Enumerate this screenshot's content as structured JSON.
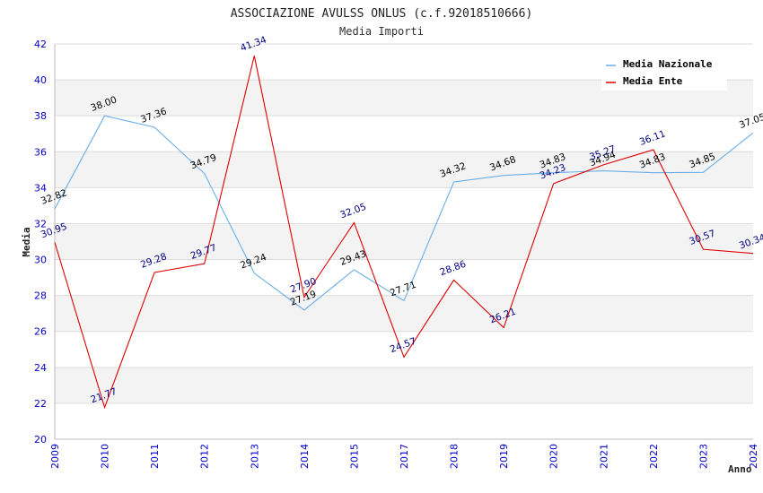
{
  "chart_data": {
    "type": "line",
    "title": "ASSOCIAZIONE AVULSS ONLUS (c.f.92018510666)",
    "subtitle": "Media Importi",
    "xlabel": "Anno",
    "ylabel": "Media",
    "ylim": [
      20,
      42
    ],
    "ytick_step": 2,
    "grid": true,
    "legend_position": "top-right",
    "categories": [
      "2009",
      "2010",
      "2011",
      "2012",
      "2013",
      "2014",
      "2015",
      "2017",
      "2018",
      "2019",
      "2020",
      "2021",
      "2022",
      "2023",
      "2024"
    ],
    "series": [
      {
        "name": "Media Nazionale",
        "color": "#6aaee8",
        "label_color": "#000000",
        "values": [
          32.82,
          38.0,
          37.36,
          34.79,
          29.24,
          27.19,
          29.43,
          27.71,
          34.32,
          34.68,
          34.83,
          34.94,
          34.83,
          34.85,
          37.05
        ],
        "labels": [
          "32.82",
          "38.00",
          "37.36",
          "34.79",
          "29.24",
          "27.19",
          "29.43",
          "27.71",
          "34.32",
          "34.68",
          "34.83",
          "34.94",
          "34.83",
          "34.85",
          "37.05"
        ]
      },
      {
        "name": "Media Ente",
        "color": "#e00000",
        "label_color": "#000080",
        "values": [
          30.95,
          21.77,
          29.28,
          29.77,
          41.34,
          27.9,
          32.05,
          24.57,
          28.86,
          26.21,
          34.23,
          35.27,
          36.11,
          30.57,
          30.34
        ],
        "labels": [
          "30.95",
          "21.77",
          "29.28",
          "29.77",
          "41.34",
          "27.90",
          "32.05",
          "24.57",
          "28.86",
          "26.21",
          "34.23",
          "35.27",
          "36.11",
          "30.57",
          "30.34"
        ]
      }
    ]
  }
}
